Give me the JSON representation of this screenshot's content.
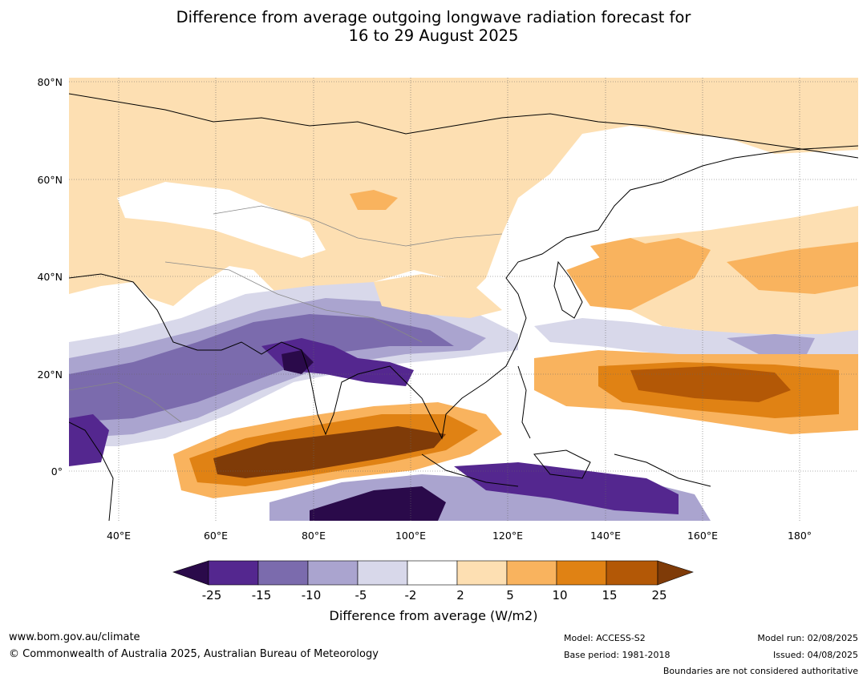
{
  "title": {
    "line1": "Difference from average outgoing longwave radiation forecast for",
    "line2": "16 to 29 August 2025"
  },
  "map": {
    "lat_labels": [
      "80°N",
      "60°N",
      "40°N",
      "20°N",
      "0°"
    ],
    "lon_labels": [
      "40°E",
      "60°E",
      "80°E",
      "100°E",
      "120°E",
      "140°E",
      "160°E",
      "180°"
    ]
  },
  "colorbar": {
    "ticks": [
      "-25",
      "-15",
      "-10",
      "-5",
      "-2",
      "2",
      "5",
      "10",
      "15",
      "25"
    ],
    "label": "Difference from average (W/m2)",
    "colors": [
      "#2a0a4a",
      "#54278f",
      "#7b6bad",
      "#aaa4cf",
      "#d8d8ea",
      "#ffffff",
      "#fddfb2",
      "#f9b35e",
      "#e08214",
      "#b35806",
      "#7f3b08"
    ]
  },
  "footer": {
    "website": "www.bom.gov.au/climate",
    "copyright": "© Commonwealth of Australia 2025, Australian Bureau of Meteorology",
    "model": "Model: ACCESS-S2",
    "base_period": "Base period: 1981-2018",
    "model_run": "Model run: 02/08/2025",
    "issued": "Issued: 04/08/2025",
    "boundaries": "Boundaries are not considered authoritative"
  }
}
